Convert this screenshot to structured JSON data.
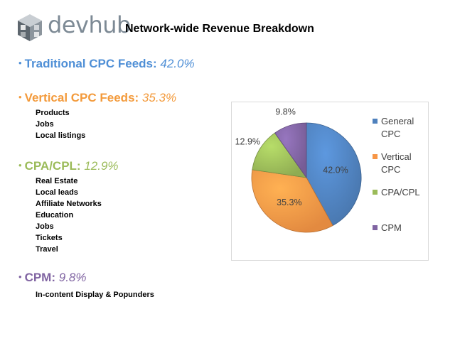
{
  "header": {
    "logo_text": "devhub",
    "title": "Network-wide Revenue Breakdown"
  },
  "sections": [
    {
      "bullet": "•",
      "label": "Traditional CPC Feeds:",
      "pct": "42.0%",
      "color": "#4f8fd6",
      "items": []
    },
    {
      "bullet": "•",
      "label": "Vertical CPC Feeds:",
      "pct": "35.3%",
      "color": "#f39a3b",
      "items": [
        "Products",
        "Jobs",
        "Local listings"
      ]
    },
    {
      "bullet": "•",
      "label": "CPA/CPL:",
      "pct": "12.9%",
      "color": "#9bbb59",
      "items": [
        "Real Estate",
        "Local leads",
        "Affiliate Networks",
        "Education",
        "Jobs",
        "Tickets",
        "Travel"
      ]
    },
    {
      "bullet": "•",
      "label": "CPM:",
      "pct": "9.8%",
      "color": "#8064a2",
      "items": [
        "In-content Display & Popunders"
      ]
    }
  ],
  "chart_data": {
    "type": "pie",
    "categories": [
      "General CPC",
      "Vertical CPC",
      "CPA/CPL",
      "CPM"
    ],
    "values": [
      42.0,
      35.3,
      12.9,
      9.8
    ],
    "data_labels": [
      "42.0%",
      "35.3%",
      "12.9%",
      "9.8%"
    ],
    "colors": [
      "#4f81bd",
      "#f79646",
      "#9bbb59",
      "#8064a2"
    ],
    "legend": "right",
    "title": ""
  }
}
